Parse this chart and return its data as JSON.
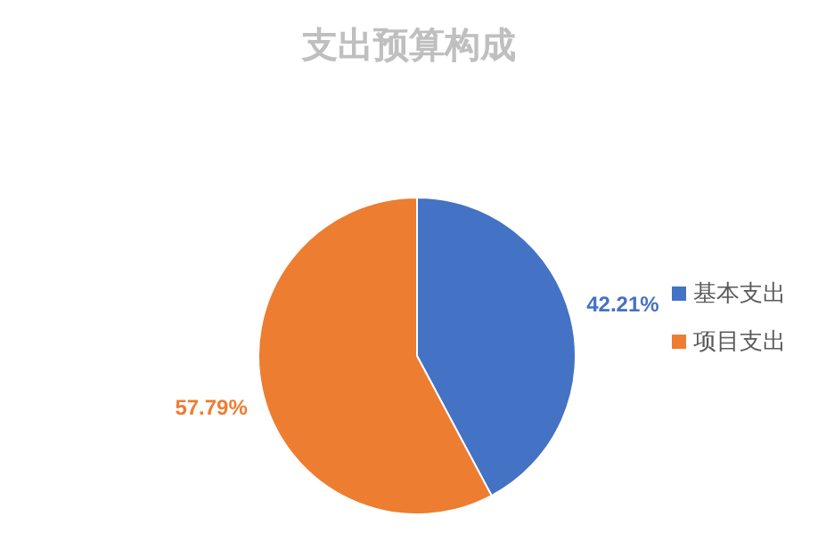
{
  "chart_data": {
    "type": "pie",
    "title": "支出预算构成",
    "categories": [
      "基本支出",
      "项目支出"
    ],
    "values": [
      42.21,
      57.79
    ],
    "colors": [
      "#4472c4",
      "#ed7d31"
    ],
    "value_labels": [
      "42.21%",
      "57.79%"
    ],
    "legend": "right"
  }
}
